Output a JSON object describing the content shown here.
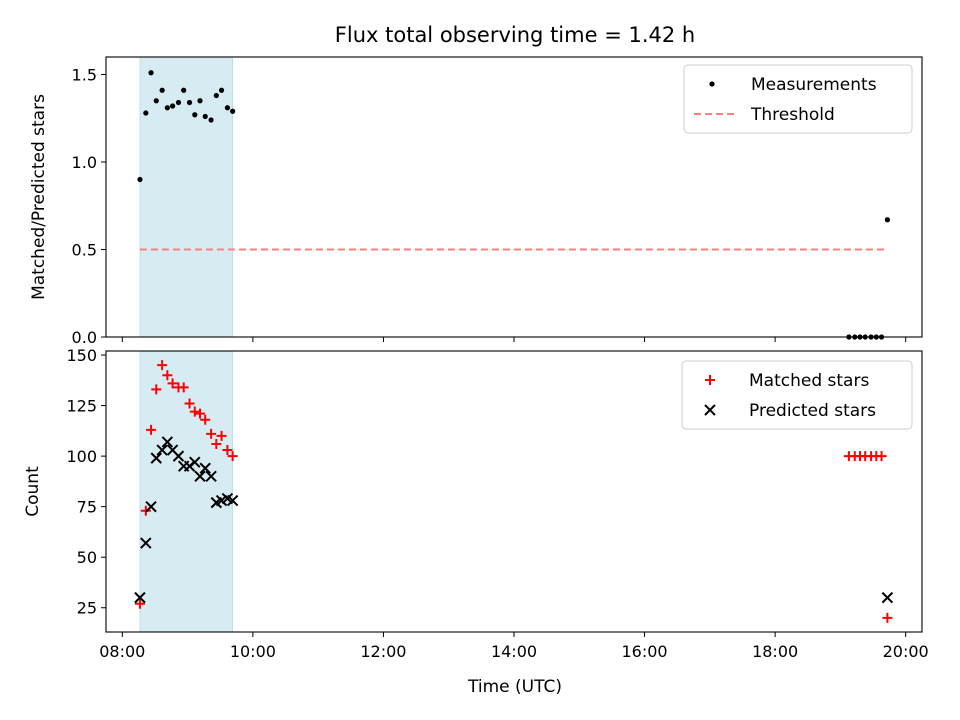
{
  "chart_data": {
    "title": "Flux total observing time = 1.42 h",
    "shared_x": {
      "label": "Time (UTC)",
      "unit": "decimal hours UTC",
      "range": [
        7.75,
        20.25
      ],
      "ticks": [
        8,
        10,
        12,
        14,
        16,
        18,
        20
      ],
      "tick_labels": [
        "08:00",
        "10:00",
        "12:00",
        "14:00",
        "16:00",
        "18:00",
        "20:00"
      ]
    },
    "shaded_interval": {
      "x": [
        8.27,
        9.69
      ],
      "color": "#add8e6",
      "alpha": 0.5
    },
    "panels": [
      {
        "type": "scatter",
        "ylabel": "Matched/Predicted stars",
        "ylim": [
          0,
          1.6
        ],
        "yticks": [
          0.0,
          0.5,
          1.0,
          1.5
        ],
        "ytick_labels": [
          "0.0",
          "0.5",
          "1.0",
          "1.5"
        ],
        "legend_position": "top-right",
        "series": [
          {
            "name": "Measurements",
            "marker": "dot",
            "color": "#000000",
            "x": [
              8.27,
              8.36,
              8.44,
              8.52,
              8.61,
              8.69,
              8.77,
              8.86,
              8.94,
              9.03,
              9.11,
              9.19,
              9.27,
              9.36,
              9.44,
              9.52,
              9.61,
              9.69,
              19.13,
              19.22,
              19.3,
              19.38,
              19.47,
              19.55,
              19.63,
              19.72
            ],
            "y": [
              0.9,
              1.28,
              1.51,
              1.35,
              1.41,
              1.31,
              1.32,
              1.34,
              1.41,
              1.34,
              1.27,
              1.35,
              1.26,
              1.24,
              1.38,
              1.41,
              1.31,
              1.29,
              0.0,
              0.0,
              0.0,
              0.0,
              0.0,
              0.0,
              0.0,
              0.67
            ]
          },
          {
            "name": "Threshold",
            "marker": "dashed-line",
            "color": "#ff7f7f",
            "x": [
              8.27,
              19.72
            ],
            "y": [
              0.5,
              0.5
            ]
          }
        ]
      },
      {
        "type": "scatter",
        "ylabel": "Count",
        "ylim": [
          13,
          152
        ],
        "yticks": [
          25,
          50,
          75,
          100,
          125,
          150
        ],
        "ytick_labels": [
          "25",
          "50",
          "75",
          "100",
          "125",
          "150"
        ],
        "legend_position": "top-right",
        "series": [
          {
            "name": "Matched stars",
            "marker": "plus",
            "color": "#ff0000",
            "x": [
              8.27,
              8.36,
              8.44,
              8.52,
              8.61,
              8.69,
              8.77,
              8.86,
              8.94,
              9.03,
              9.11,
              9.19,
              9.27,
              9.36,
              9.44,
              9.52,
              9.61,
              9.69,
              19.13,
              19.22,
              19.3,
              19.38,
              19.47,
              19.55,
              19.63,
              19.72
            ],
            "y": [
              27,
              73,
              113,
              133,
              145,
              140,
              136,
              134,
              134,
              126,
              122,
              121,
              118,
              111,
              106,
              110,
              103,
              100,
              100,
              100,
              100,
              100,
              100,
              100,
              100,
              20
            ]
          },
          {
            "name": "Predicted stars",
            "marker": "x",
            "color": "#000000",
            "x": [
              8.27,
              8.36,
              8.44,
              8.52,
              8.61,
              8.69,
              8.77,
              8.86,
              8.94,
              9.03,
              9.11,
              9.19,
              9.27,
              9.36,
              9.44,
              9.52,
              9.61,
              9.69,
              19.72
            ],
            "y": [
              30,
              57,
              75,
              99,
              103,
              107,
              103,
              100,
              95,
              95,
              97,
              90,
              94,
              90,
              77,
              78,
              79,
              78,
              30
            ]
          }
        ]
      }
    ]
  }
}
